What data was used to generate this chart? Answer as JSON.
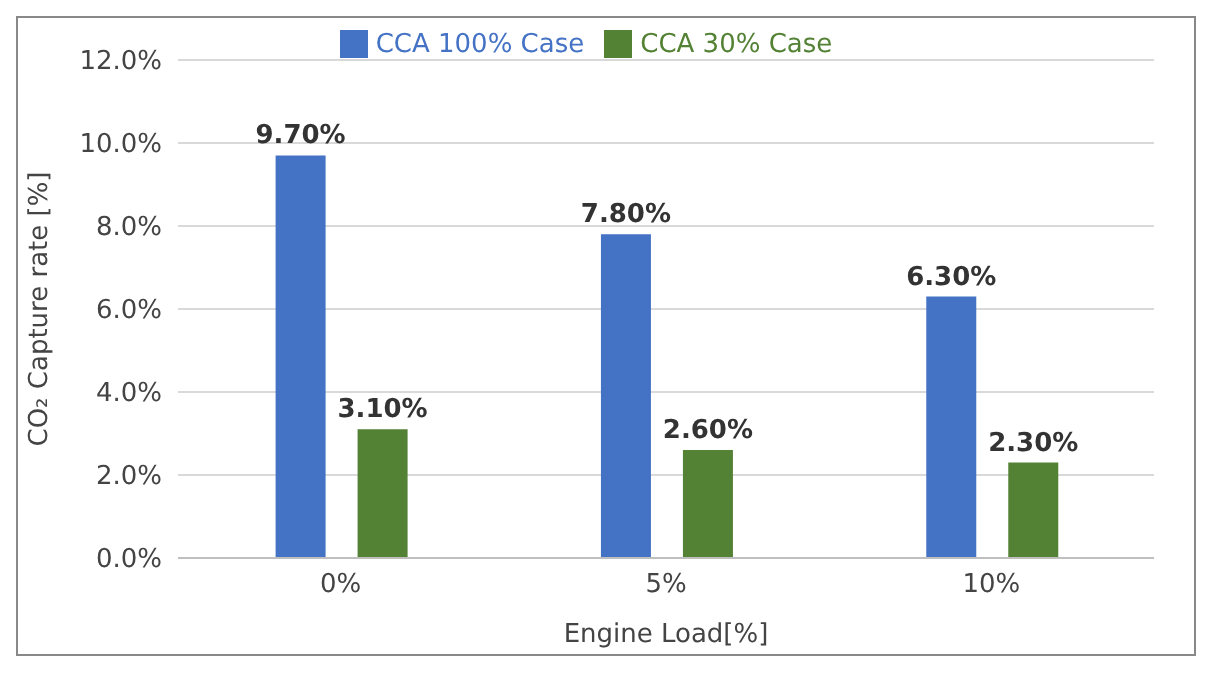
{
  "chart_data": {
    "type": "bar",
    "categories": [
      "0%",
      "5%",
      "10%"
    ],
    "series": [
      {
        "name": "CCA 100% Case",
        "color": "#4472c4",
        "values": [
          9.7,
          7.8,
          6.3
        ],
        "value_labels": [
          "9.70%",
          "7.80%",
          "6.30%"
        ]
      },
      {
        "name": "CCA 30% Case",
        "color": "#548235",
        "values": [
          3.1,
          2.6,
          2.3
        ],
        "value_labels": [
          "3.10%",
          "2.60%",
          "2.30%"
        ]
      }
    ],
    "xlabel": "Engine Load[%]",
    "ylabel": "CO₂ Capture rate [%]",
    "ylim": [
      0,
      12
    ],
    "yticks": [
      {
        "value": 0,
        "label": "0.0%"
      },
      {
        "value": 2,
        "label": "2.0%"
      },
      {
        "value": 4,
        "label": "4.0%"
      },
      {
        "value": 6,
        "label": "6.0%"
      },
      {
        "value": 8,
        "label": "8.0%"
      },
      {
        "value": 10,
        "label": "10.0%"
      },
      {
        "value": 12,
        "label": "12.0%"
      }
    ],
    "grid": "y",
    "legend": "top"
  }
}
